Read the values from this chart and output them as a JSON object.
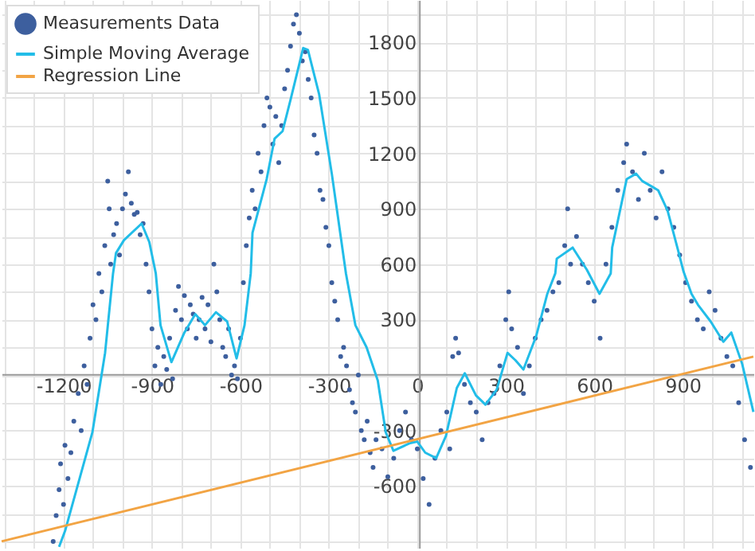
{
  "chart_data": {
    "type": "scatter",
    "xlim": [
      -1410,
      1140
    ],
    "ylim": [
      -935,
      2030
    ],
    "xticks": [
      {
        "value": -1400,
        "label": null
      },
      {
        "value": -1300,
        "label": null
      },
      -1200,
      {
        "value": -1100,
        "label": null
      },
      {
        "value": -1000,
        "label": null
      },
      -900,
      {
        "value": -800,
        "label": null
      },
      {
        "value": -700,
        "label": null
      },
      -600,
      {
        "value": -500,
        "label": null
      },
      {
        "value": -400,
        "label": null
      },
      -300,
      {
        "value": -200,
        "label": null
      },
      {
        "value": -100,
        "label": null
      },
      0,
      {
        "value": 100,
        "label": null
      },
      {
        "value": 200,
        "label": null
      },
      300,
      {
        "value": 400,
        "label": null
      },
      {
        "value": 500,
        "label": null
      },
      600,
      {
        "value": 700,
        "label": null
      },
      {
        "value": 800,
        "label": null
      },
      900,
      {
        "value": 1000,
        "label": null
      },
      {
        "value": 1100,
        "label": null
      }
    ],
    "yticks": [
      {
        "value": -900,
        "label": null
      },
      {
        "value": -750,
        "label": null
      },
      -600,
      {
        "value": -450,
        "label": null
      },
      -300,
      {
        "value": -150,
        "label": null
      },
      {
        "value": 0,
        "label": null
      },
      {
        "value": 150,
        "label": null
      },
      300,
      {
        "value": 450,
        "label": null
      },
      600,
      {
        "value": 750,
        "label": null
      },
      900,
      {
        "value": 1050,
        "label": null
      },
      1200,
      {
        "value": 1350,
        "label": null
      },
      1500,
      {
        "value": 1650,
        "label": null
      },
      1800,
      {
        "value": 1950,
        "label": null
      }
    ],
    "grid": true,
    "legend": "top left",
    "series": [
      {
        "name": "Measurements Data",
        "color": "#3d5f9e",
        "x": [
          -1235,
          -1225,
          -1215,
          -1210,
          -1200,
          -1195,
          -1185,
          -1175,
          -1165,
          -1150,
          -1140,
          -1130,
          -1120,
          -1110,
          -1100,
          -1090,
          -1080,
          -1070,
          -1060,
          -1050,
          -1045,
          -1040,
          -1030,
          -1020,
          -1010,
          -1000,
          -990,
          -980,
          -970,
          -960,
          -950,
          -940,
          -930,
          -920,
          -910,
          -900,
          -890,
          -880,
          -870,
          -860,
          -850,
          -840,
          -830,
          -820,
          -810,
          -800,
          -790,
          -780,
          -770,
          -760,
          -750,
          -740,
          -730,
          -720,
          -710,
          -700,
          -690,
          -680,
          -670,
          -660,
          -650,
          -640,
          -630,
          -620,
          -610,
          -600,
          -590,
          -580,
          -570,
          -560,
          -550,
          -540,
          -530,
          -520,
          -510,
          -500,
          -490,
          -480,
          -470,
          -460,
          -450,
          -440,
          -430,
          -420,
          -410,
          -400,
          -390,
          -380,
          -370,
          -360,
          -350,
          -340,
          -330,
          -320,
          -310,
          -300,
          -290,
          -280,
          -270,
          -260,
          -250,
          -240,
          -230,
          -220,
          -210,
          -200,
          -190,
          -180,
          -170,
          -160,
          -150,
          -140,
          -120,
          -100,
          -80,
          -60,
          -40,
          -20,
          0,
          20,
          40,
          60,
          80,
          100,
          110,
          120,
          130,
          140,
          160,
          180,
          200,
          220,
          240,
          260,
          280,
          300,
          310,
          320,
          340,
          360,
          380,
          400,
          420,
          440,
          460,
          480,
          500,
          510,
          520,
          540,
          560,
          580,
          600,
          620,
          640,
          660,
          680,
          700,
          710,
          730,
          750,
          770,
          790,
          810,
          830,
          850,
          870,
          890,
          910,
          930,
          950,
          970,
          990,
          1010,
          1030,
          1050,
          1070,
          1090,
          1110,
          1130
        ],
        "values": [
          -900,
          -760,
          -620,
          -480,
          -700,
          -380,
          -560,
          -420,
          -250,
          -100,
          -300,
          50,
          -50,
          200,
          380,
          300,
          550,
          450,
          700,
          1050,
          900,
          600,
          760,
          820,
          650,
          900,
          980,
          1100,
          930,
          870,
          880,
          760,
          820,
          600,
          450,
          250,
          50,
          150,
          -50,
          100,
          30,
          200,
          -20,
          350,
          480,
          300,
          430,
          250,
          380,
          330,
          200,
          300,
          420,
          250,
          380,
          180,
          600,
          450,
          300,
          150,
          100,
          250,
          0,
          50,
          -20,
          200,
          500,
          700,
          850,
          1000,
          900,
          1200,
          1100,
          1350,
          1500,
          1450,
          1250,
          1400,
          1150,
          1350,
          1550,
          1650,
          1780,
          1900,
          1950,
          1850,
          1700,
          1750,
          1600,
          1500,
          1300,
          1200,
          1000,
          950,
          800,
          700,
          500,
          400,
          300,
          100,
          150,
          50,
          -80,
          -150,
          -200,
          0,
          -300,
          -350,
          -250,
          -420,
          -500,
          -350,
          -400,
          -550,
          -450,
          -300,
          -200,
          -350,
          -400,
          -560,
          -700,
          -450,
          -300,
          -200,
          -400,
          100,
          200,
          120,
          -50,
          -150,
          -200,
          -350,
          -150,
          -100,
          50,
          300,
          450,
          250,
          150,
          -100,
          50,
          200,
          300,
          350,
          450,
          500,
          700,
          900,
          600,
          750,
          600,
          500,
          400,
          200,
          600,
          800,
          1000,
          1150,
          1250,
          1100,
          950,
          1200,
          1000,
          850,
          1100,
          900,
          800,
          650,
          500,
          400,
          300,
          250,
          450,
          350,
          200,
          100,
          50,
          -150,
          -350,
          -500
        ]
      },
      {
        "name": "Simple Moving Average",
        "type": "line",
        "color": "#22bde8",
        "x": [
          -1215,
          -1194,
          -1102,
          -1059,
          -1032,
          -1022,
          -995,
          -935,
          -909,
          -887,
          -871,
          -834,
          -790,
          -753,
          -720,
          -683,
          -645,
          -613,
          -586,
          -565,
          -559,
          -511,
          -484,
          -457,
          -430,
          -387,
          -371,
          -333,
          -290,
          -242,
          -210,
          -172,
          -134,
          -107,
          -81,
          -27,
          0,
          27,
          64,
          97,
          134,
          161,
          199,
          231,
          269,
          306,
          333,
          360,
          403,
          441,
          468,
          473,
          527,
          575,
          618,
          656,
          661,
          710,
          742,
          763,
          796,
          817,
          849,
          887,
          903,
          930,
          952,
          995,
          1038,
          1065,
          1102,
          1140
        ],
        "values": [
          -930,
          -840,
          -310,
          120,
          550,
          660,
          730,
          820,
          720,
          550,
          270,
          70,
          230,
          330,
          270,
          340,
          290,
          90,
          270,
          550,
          770,
          1060,
          1280,
          1320,
          1490,
          1770,
          1760,
          1520,
          1090,
          550,
          270,
          150,
          -30,
          -310,
          -410,
          -370,
          -360,
          -420,
          -450,
          -330,
          -70,
          10,
          -110,
          -160,
          -80,
          120,
          80,
          30,
          210,
          440,
          550,
          630,
          690,
          570,
          440,
          550,
          690,
          1060,
          1090,
          1050,
          1020,
          1000,
          890,
          660,
          560,
          440,
          380,
          290,
          180,
          230,
          60,
          -200
        ]
      },
      {
        "name": "Regression Line",
        "type": "line",
        "color": "#f2a444",
        "x": [
          -1410,
          1140
        ],
        "values": [
          -900,
          100
        ]
      }
    ]
  }
}
